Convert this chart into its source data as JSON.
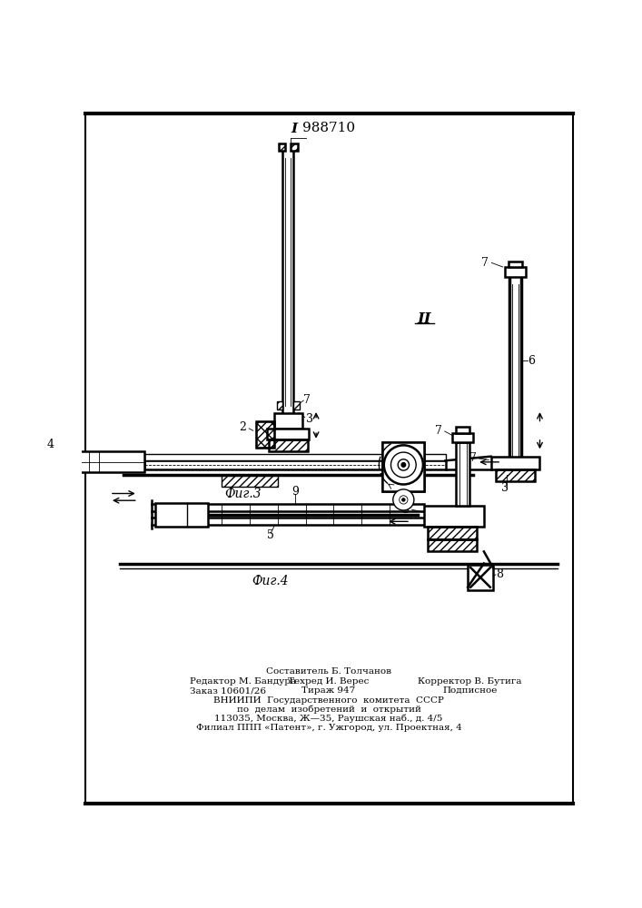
{
  "title": "988710",
  "fig_label_3": "Фиг.3",
  "fig_label_4": "Фиг.4",
  "roman_I": "I",
  "roman_II": "II",
  "footer_line0": "Составитель Б. Толчанов",
  "footer_col1_r1": "Редактор М. Бандура",
  "footer_col2_r1": "Техред И. Верес",
  "footer_col3_r1": "Корректор В. Бутига",
  "footer_col1_r2": "Заказ 10601/26",
  "footer_col2_r2": "Тираж 947",
  "footer_col3_r2": "Подписное",
  "footer_vniip1": "ВНИИПИ  Государственного  комитета  СССР",
  "footer_vniip2": "по  делам  изобретений  и  открытий",
  "footer_addr1": "113035, Москва, Ж—35, Раушская наб., д. 4/5",
  "footer_addr2": "Филиал ППП «Патент», г. Ужгород, ул. Проектная, 4",
  "bg_color": "#ffffff",
  "line_color": "#000000"
}
